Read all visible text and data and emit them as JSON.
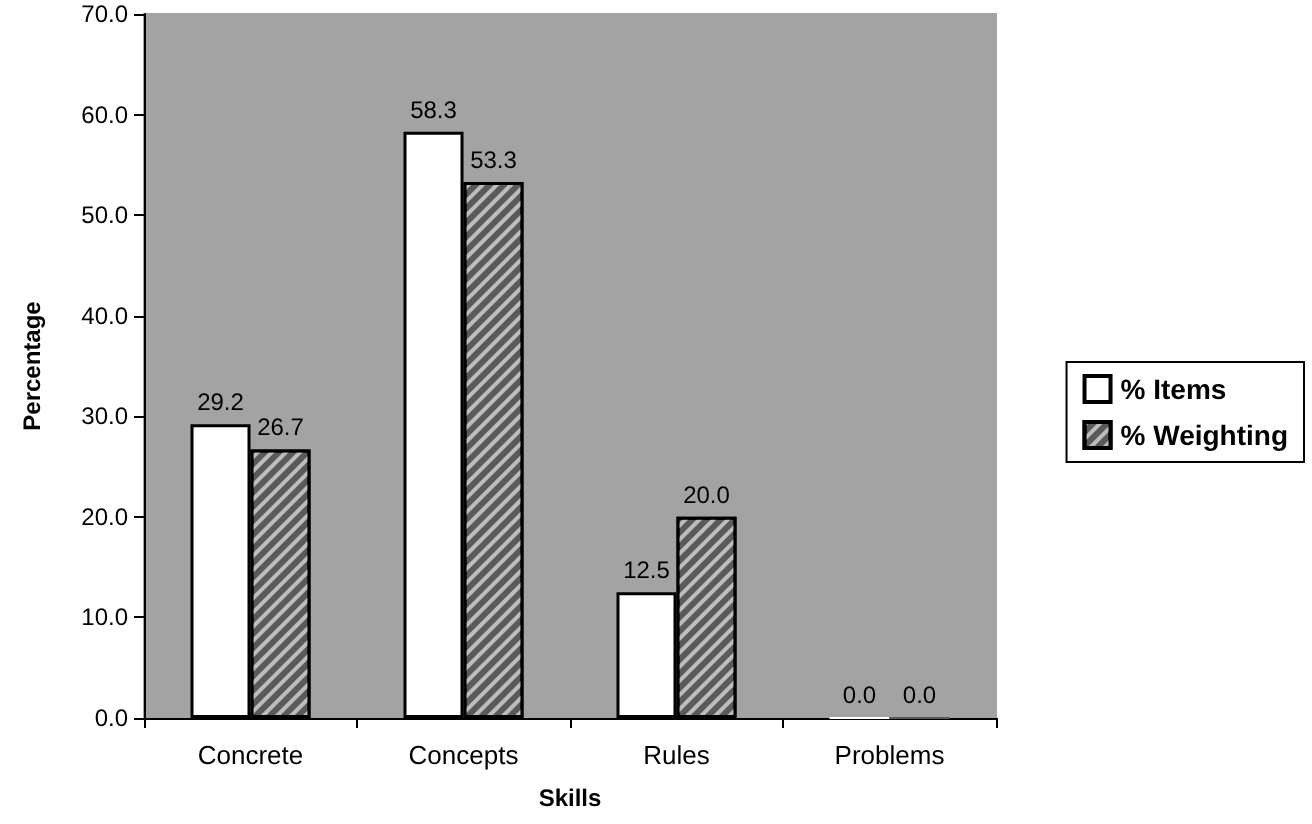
{
  "chart_data": {
    "type": "bar",
    "xlabel": "Skills",
    "ylabel": "Percentage",
    "categories": [
      "Concrete",
      "Concepts",
      "Rules",
      "Problems"
    ],
    "series": [
      {
        "name": "% Items",
        "color": "#ffffff",
        "values": [
          29.2,
          58.3,
          12.5,
          0.0
        ],
        "value_labels": [
          "29.2",
          "58.3",
          "12.5",
          "0.0"
        ]
      },
      {
        "name": "% Weighting",
        "color": "#5a5a5a",
        "values": [
          26.7,
          53.3,
          20.0,
          0.0
        ],
        "value_labels": [
          "26.7",
          "53.3",
          "20.0",
          "0.0"
        ]
      }
    ],
    "ylim": [
      0,
      70
    ],
    "yticks": [
      {
        "value": 0,
        "label": "0.0"
      },
      {
        "value": 10,
        "label": "10.0"
      },
      {
        "value": 20,
        "label": "20.0"
      },
      {
        "value": 30,
        "label": "30.0"
      },
      {
        "value": 40,
        "label": "40.0"
      },
      {
        "value": 50,
        "label": "50.0"
      },
      {
        "value": 60,
        "label": "60.0"
      },
      {
        "value": 70,
        "label": "70.0"
      }
    ],
    "grid": false,
    "legend": "right"
  }
}
